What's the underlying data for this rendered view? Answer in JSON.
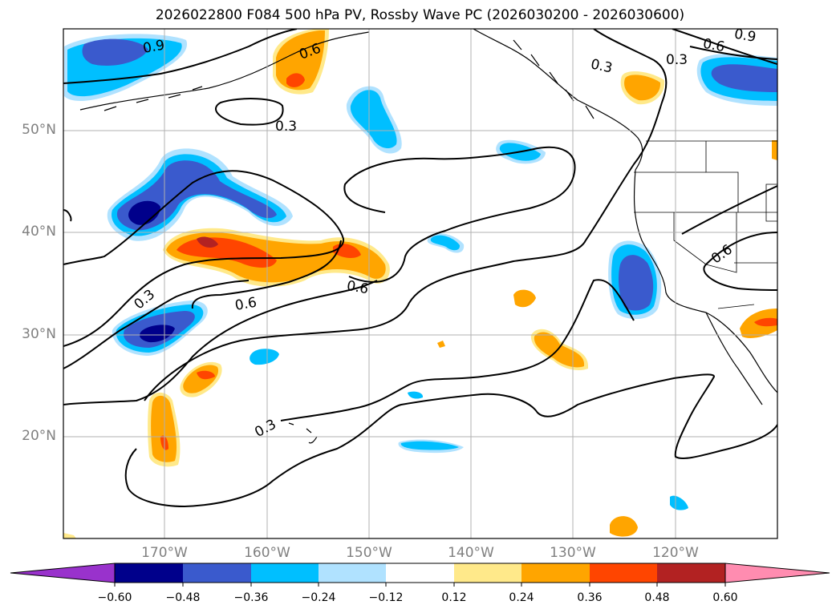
{
  "title": "2026022800 F084 500 hPa PV, Rossby Wave PC (2026030200 - 2026030600)",
  "lat_labels": [
    "50°N",
    "40°N",
    "30°N",
    "20°N"
  ],
  "lon_labels": [
    "170°W",
    "160°W",
    "150°W",
    "140°W",
    "130°W",
    "120°W"
  ],
  "contour_labels": [
    "0.9",
    "0.6",
    "0.3",
    "0.3",
    "0.3",
    "0.6",
    "0.9",
    "0.3",
    "0.3",
    "0.6",
    "0.6",
    "0.3",
    "0.6"
  ],
  "colorbar": {
    "ticks": [
      "−0.60",
      "−0.48",
      "−0.36",
      "−0.24",
      "−0.12",
      "0.12",
      "0.24",
      "0.36",
      "0.48",
      "0.60"
    ],
    "colors": [
      "#9932cc",
      "#00008b",
      "#3a5acd",
      "#00bfff",
      "#b0e2ff",
      "#ffffff",
      "#ffe98a",
      "#ffa500",
      "#ff4500",
      "#b22222",
      "#ff8cb0"
    ]
  },
  "colors": {
    "neg_weak": "#00bfff",
    "neg_mid": "#3a5acd",
    "neg_strong": "#00008b",
    "pos_weak": "#ffa500",
    "pos_mid": "#ff4500",
    "pos_strong": "#b22222",
    "fringe_neg": "#b0e2ff",
    "fringe_pos": "#ffe98a"
  }
}
